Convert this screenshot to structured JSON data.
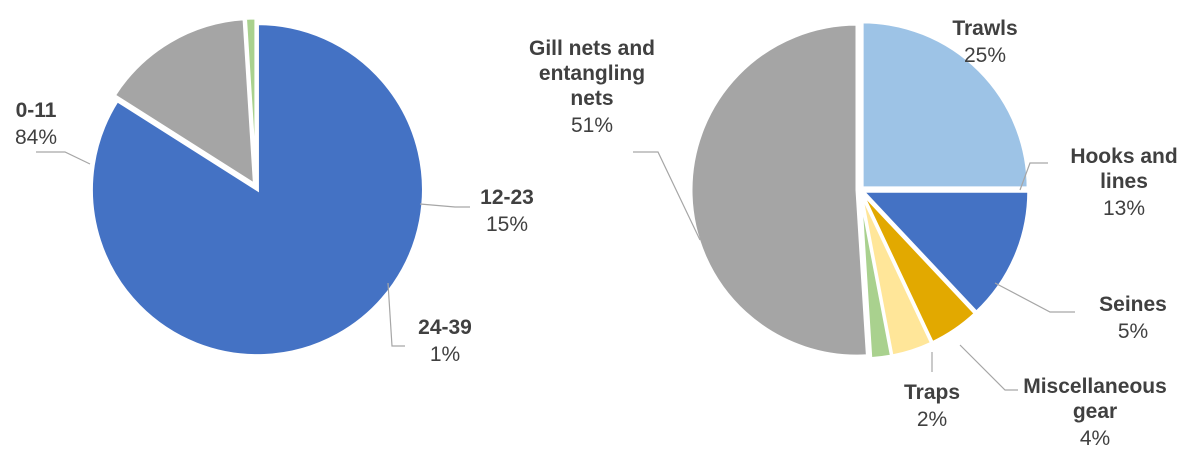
{
  "chart_data": [
    {
      "type": "pie",
      "title": "",
      "slices": [
        {
          "label": "0-11",
          "value": 84,
          "value_label": "84%",
          "color": "#4472c4"
        },
        {
          "label": "12-23",
          "value": 15,
          "value_label": "15%",
          "color": "#a5a5a5"
        },
        {
          "label": "24-39",
          "value": 1,
          "value_label": "1%",
          "color": "#a9d18e"
        }
      ],
      "legend": "none (data labels with leader lines)"
    },
    {
      "type": "pie",
      "title": "",
      "slices": [
        {
          "label": "Trawls",
          "value": 25,
          "value_label": "25%",
          "color": "#9dc3e6"
        },
        {
          "label": "Hooks and lines",
          "value": 13,
          "value_label": "13%",
          "color": "#4472c4"
        },
        {
          "label": "Seines",
          "value": 5,
          "value_label": "5%",
          "color": "#e2a900"
        },
        {
          "label": "Miscellaneous gear",
          "value": 4,
          "value_label": "4%",
          "color": "#ffe699"
        },
        {
          "label": "Traps",
          "value": 2,
          "value_label": "2%",
          "color": "#a9d18e"
        },
        {
          "label": "Gill nets and entangling nets",
          "value": 51,
          "value_label": "51%",
          "color": "#a5a5a5"
        }
      ],
      "legend": "none (data labels with leader lines)"
    }
  ]
}
